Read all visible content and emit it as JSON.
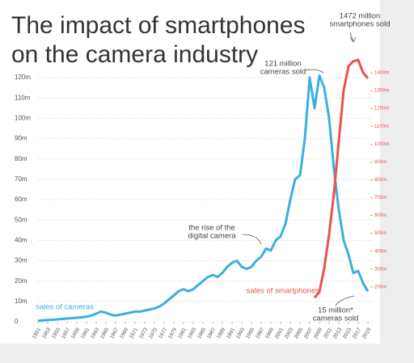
{
  "chart_data": {
    "type": "line",
    "title": "The impact of smartphones on the camera industry",
    "x": [
      1951,
      1952,
      1953,
      1954,
      1955,
      1956,
      1957,
      1958,
      1959,
      1960,
      1961,
      1962,
      1963,
      1964,
      1965,
      1966,
      1967,
      1968,
      1969,
      1970,
      1971,
      1972,
      1973,
      1974,
      1975,
      1976,
      1977,
      1978,
      1979,
      1980,
      1981,
      1982,
      1983,
      1984,
      1985,
      1986,
      1987,
      1988,
      1989,
      1990,
      1991,
      1992,
      1993,
      1994,
      1995,
      1996,
      1997,
      1998,
      1999,
      2000,
      2001,
      2002,
      2003,
      2004,
      2005,
      2006,
      2007,
      2008,
      2009,
      2010,
      2011,
      2012,
      2013,
      2014,
      2015,
      2016,
      2017,
      2018,
      2019
    ],
    "xlim": [
      1951,
      2019
    ],
    "xticks": [
      1951,
      1953,
      1955,
      1957,
      1959,
      1961,
      1963,
      1965,
      1967,
      1969,
      1971,
      1973,
      1975,
      1977,
      1979,
      1981,
      1983,
      1985,
      1987,
      1989,
      1991,
      1993,
      1995,
      1997,
      1999,
      2001,
      2003,
      2005,
      2007,
      2009,
      2011,
      2013,
      2015,
      2017,
      2019
    ],
    "ylim": [
      0,
      120
    ],
    "yticks": [
      0,
      {
        "value": 10,
        "label": "10m"
      },
      {
        "value": 20,
        "label": "20m"
      },
      {
        "value": 30,
        "label": "30m"
      },
      {
        "value": 40,
        "label": "40m"
      },
      {
        "value": 50,
        "label": "50m"
      },
      {
        "value": 60,
        "label": "60m"
      },
      {
        "value": 70,
        "label": "70m"
      },
      {
        "value": 80,
        "label": "80m"
      },
      {
        "value": 90,
        "label": "90m"
      },
      {
        "value": 100,
        "label": "100m"
      },
      {
        "value": 110,
        "label": "110m"
      },
      {
        "value": 120,
        "label": "120m"
      }
    ],
    "y2lim": [
      0,
      1400
    ],
    "y2ticks": [
      {
        "value": 200,
        "label": "200m"
      },
      {
        "value": 300,
        "label": "300m"
      },
      {
        "value": 400,
        "label": "400m"
      },
      {
        "value": 500,
        "label": "500m"
      },
      {
        "value": 600,
        "label": "600m"
      },
      {
        "value": 700,
        "label": "700m"
      },
      {
        "value": 800,
        "label": "800m"
      },
      {
        "value": 900,
        "label": "900m"
      },
      {
        "value": 1000,
        "label": "1000m"
      },
      {
        "value": 1100,
        "label": "1100m"
      },
      {
        "value": 1200,
        "label": "1200m"
      },
      {
        "value": 1300,
        "label": "1300m"
      },
      {
        "value": 1400,
        "label": "1400m"
      }
    ],
    "grid": true,
    "series": [
      {
        "name": "sales of cameras",
        "color": "#3ab0de",
        "values": [
          0.5,
          0.7,
          0.9,
          1,
          1.2,
          1.4,
          1.6,
          1.8,
          2,
          2.2,
          2.5,
          3,
          4,
          5,
          4.5,
          3.5,
          3,
          3.5,
          4,
          4.5,
          5,
          5,
          5.5,
          6,
          6.5,
          7.5,
          9,
          11,
          13,
          15,
          16,
          15,
          16,
          18,
          20,
          22,
          23,
          22,
          24,
          27,
          29,
          30,
          27,
          26,
          27,
          30,
          32,
          36,
          35,
          40,
          42,
          48,
          60,
          70,
          72,
          90,
          120,
          105,
          121,
          115,
          100,
          75,
          55,
          40,
          33,
          24,
          25,
          19,
          15
        ]
      },
      {
        "name": "sales of smartphones",
        "color": "#e8534a",
        "axis": "y2",
        "values": [
          null,
          null,
          null,
          null,
          null,
          null,
          null,
          null,
          null,
          null,
          null,
          null,
          null,
          null,
          null,
          null,
          null,
          null,
          null,
          null,
          null,
          null,
          null,
          null,
          null,
          null,
          null,
          null,
          null,
          null,
          null,
          null,
          null,
          null,
          null,
          null,
          null,
          null,
          null,
          null,
          null,
          null,
          null,
          null,
          null,
          null,
          null,
          null,
          null,
          null,
          null,
          null,
          null,
          null,
          null,
          null,
          null,
          139,
          172,
          305,
          495,
          725,
          1019,
          1301,
          1437,
          1465,
          1472,
          1400,
          1370
        ]
      }
    ],
    "annotations": [
      {
        "lines": [
          "121 million",
          "cameras sold"
        ]
      },
      {
        "lines": [
          "1472 million",
          "smartphones sold"
        ]
      },
      {
        "lines": [
          "the rise of the",
          "digital camera"
        ]
      },
      {
        "lines": [
          "15 million*",
          "cameras sold"
        ]
      }
    ]
  }
}
